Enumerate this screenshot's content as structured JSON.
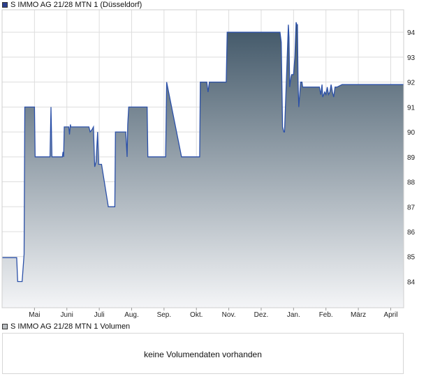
{
  "colors": {
    "price_line": "#2b50a8",
    "area_top": "#3f5566",
    "area_bottom": "#f4f5f7",
    "grid": "#dddddd",
    "legend_price_swatch": "#2b3f8f",
    "legend_volume_swatch": "#b8bcc0"
  },
  "chart_data": {
    "type": "area",
    "title": "S IMMO AG 21/28 MTN 1 (Düsseldorf)",
    "legend": [
      "S IMMO AG 21/28 MTN 1 (Düsseldorf)",
      "S IMMO AG 21/28 MTN 1 Volumen"
    ],
    "x_tick_labels": [
      "Mai",
      "Juni",
      "Juli",
      "Aug.",
      "Sep.",
      "Okt.",
      "Nov.",
      "Dez.",
      "Jan.",
      "Feb.",
      "März",
      "April"
    ],
    "y_ticks": [
      84,
      85,
      86,
      87,
      88,
      89,
      90,
      91,
      92,
      93,
      94
    ],
    "ylim": [
      82.95,
      94.9
    ],
    "xlim": [
      0,
      12.4
    ],
    "grid": true,
    "y_axis_position": "right",
    "series": [
      {
        "x": [
          0.0,
          0.45,
          0.48,
          0.62,
          0.68,
          0.7,
          1.0,
          1.02,
          1.48,
          1.51,
          1.54,
          1.56,
          1.86,
          1.88,
          1.9,
          1.92,
          2.06,
          2.08,
          2.11,
          2.12,
          2.16,
          2.18,
          2.68,
          2.72,
          2.78,
          2.82,
          2.86,
          2.9,
          2.95,
          2.98,
          3.01,
          3.03,
          3.07,
          3.28,
          3.3,
          3.48,
          3.5,
          3.56,
          3.58,
          3.82,
          3.86,
          3.88,
          3.91,
          3.93,
          4.48,
          4.5,
          5.05,
          5.08,
          5.54,
          5.56,
          5.58,
          5.6,
          5.62,
          5.64,
          6.1,
          6.12,
          6.32,
          6.36,
          6.4,
          6.44,
          6.48,
          6.92,
          6.95,
          8.58,
          8.62,
          8.66,
          8.7,
          8.72,
          8.84,
          8.86,
          8.88,
          8.92,
          8.94,
          9.0,
          9.04,
          9.08,
          9.1,
          9.12,
          9.14,
          9.16,
          9.22,
          9.26,
          9.28,
          9.8,
          9.84,
          9.88,
          9.9,
          9.96,
          10.0,
          10.04,
          10.08,
          10.12,
          10.16,
          10.2,
          10.24,
          10.28,
          10.34,
          10.5,
          11.34,
          12.4
        ],
        "values": [
          84.96,
          84.96,
          84.0,
          84.0,
          85.1,
          91.0,
          91.0,
          89.0,
          89.0,
          91.0,
          89.0,
          89.0,
          89.0,
          89.2,
          89.0,
          90.2,
          90.2,
          89.9,
          90.3,
          90.2,
          90.2,
          90.2,
          90.2,
          90.0,
          90.1,
          90.2,
          88.6,
          88.8,
          90.0,
          88.7,
          88.7,
          88.7,
          88.7,
          87.0,
          87.0,
          87.0,
          90.0,
          90.0,
          90.0,
          90.0,
          89.0,
          90.3,
          91.0,
          91.0,
          91.0,
          89.0,
          89.0,
          92.0,
          89.0,
          89.0,
          89.0,
          89.0,
          89.0,
          89.0,
          89.0,
          92.0,
          92.0,
          91.6,
          92.0,
          92.0,
          92.0,
          92.0,
          94.0,
          94.0,
          93.6,
          90.2,
          90.0,
          90.0,
          94.3,
          93.8,
          91.8,
          92.2,
          92.3,
          92.3,
          93.0,
          94.4,
          94.3,
          94.3,
          92.0,
          91.0,
          92.0,
          92.0,
          91.8,
          91.8,
          91.5,
          91.9,
          91.4,
          91.6,
          91.5,
          91.8,
          91.5,
          91.6,
          91.9,
          91.6,
          91.4,
          91.8,
          91.8,
          91.9,
          91.9,
          91.9
        ]
      }
    ]
  },
  "volume_panel": {
    "legend": "S IMMO AG 21/28 MTN 1 Volumen",
    "message": "keine Volumendaten vorhanden"
  }
}
